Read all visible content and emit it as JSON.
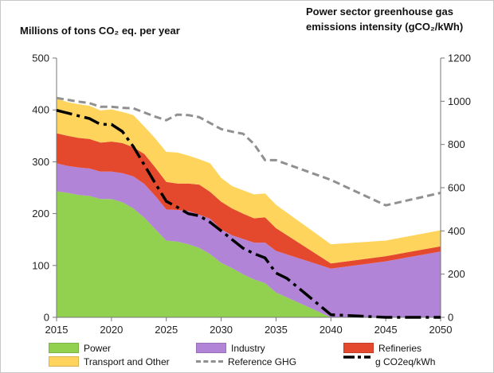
{
  "chart_data": {
    "type": "area",
    "ylabel_left": "Millions of tons CO₂ eq. per year",
    "ylabel_right": "Power sector greenhouse gas emissions intensity (gCO₂/kWh)",
    "x": [
      2015,
      2016,
      2017,
      2018,
      2019,
      2020,
      2021,
      2022,
      2023,
      2024,
      2025,
      2026,
      2027,
      2028,
      2029,
      2030,
      2031,
      2032,
      2033,
      2034,
      2035,
      2040,
      2045,
      2050
    ],
    "xticks": [
      2015,
      2020,
      2025,
      2030,
      2035,
      2040,
      2045,
      2050
    ],
    "xlim": [
      2015,
      2050
    ],
    "ylim_left": [
      0,
      500
    ],
    "yticks_left": [
      0,
      100,
      200,
      300,
      400,
      500
    ],
    "ylim_right": [
      0,
      1200
    ],
    "yticks_right": [
      0,
      200,
      400,
      600,
      800,
      1000,
      1200
    ],
    "stack_order": [
      "power",
      "industry",
      "refineries",
      "transport"
    ],
    "stacked_series": [
      {
        "id": "power",
        "name": "Power",
        "color": "#92d050",
        "values": [
          243,
          240,
          236,
          234,
          228,
          228,
          222,
          210,
          192,
          170,
          148,
          146,
          141,
          134,
          122,
          105,
          95,
          83,
          73,
          66,
          48,
          0,
          0,
          0
        ]
      },
      {
        "id": "industry",
        "name": "Industry",
        "color": "#b284d8",
        "values": [
          54,
          52,
          53,
          53,
          53,
          53,
          56,
          62,
          65,
          64,
          60,
          61,
          64,
          64,
          68,
          65,
          63,
          68,
          71,
          78,
          80,
          94,
          108,
          127
        ]
      },
      {
        "id": "refineries",
        "name": "Refineries",
        "color": "#e5492d",
        "values": [
          58,
          58,
          57,
          57,
          56,
          58,
          58,
          56,
          58,
          55,
          53,
          51,
          53,
          58,
          52,
          53,
          52,
          49,
          47,
          49,
          44,
          10,
          10,
          10
        ]
      },
      {
        "id": "transport",
        "name": "Transport and Other",
        "color": "#ffd45c",
        "values": [
          67,
          65,
          65,
          64,
          62,
          62,
          60,
          62,
          53,
          56,
          58,
          60,
          54,
          49,
          55,
          46,
          43,
          45,
          46,
          46,
          45,
          37,
          30,
          31
        ]
      }
    ],
    "line_series": [
      {
        "id": "refghg",
        "name": "Reference GHG",
        "axis": "left",
        "style": "dashed",
        "color": "#909090",
        "x": [
          2015,
          2017,
          2018,
          2019,
          2020,
          2021,
          2022,
          2024,
          2025,
          2026,
          2027,
          2028,
          2030,
          2031,
          2032,
          2033,
          2034,
          2035,
          2040,
          2045,
          2050
        ],
        "values": [
          423,
          416,
          413,
          406,
          406,
          404,
          403,
          387,
          380,
          391,
          390,
          386,
          363,
          358,
          354,
          334,
          303,
          303,
          265,
          216,
          240
        ]
      },
      {
        "id": "gco2",
        "name": "g CO2eq/kWh",
        "axis": "right",
        "style": "dashdot",
        "color": "#000000",
        "x": [
          2015,
          2018,
          2019,
          2020,
          2021,
          2022,
          2023,
          2024,
          2025,
          2026,
          2027,
          2028,
          2029,
          2030,
          2031,
          2032,
          2033,
          2034,
          2035,
          2036,
          2040,
          2045,
          2050
        ],
        "values": [
          958,
          920,
          893,
          893,
          860,
          790,
          705,
          620,
          537,
          510,
          480,
          470,
          440,
          400,
          360,
          320,
          295,
          275,
          205,
          180,
          12,
          0,
          0
        ]
      }
    ],
    "legend": {
      "placement": "bottom",
      "rows": [
        [
          {
            "id": "power",
            "label": "Power",
            "kind": "fill",
            "color": "#92d050"
          },
          {
            "id": "industry",
            "label": "Industry",
            "kind": "fill",
            "color": "#b284d8"
          },
          {
            "id": "refineries",
            "label": "Refineries",
            "kind": "fill",
            "color": "#e5492d"
          }
        ],
        [
          {
            "id": "transport",
            "label": "Transport and Other",
            "kind": "fill",
            "color": "#ffd45c"
          },
          {
            "id": "refghg",
            "label": "Reference GHG",
            "kind": "dashed",
            "color": "#909090"
          },
          {
            "id": "gco2",
            "label": "g CO2eq/kWh",
            "kind": "dashdot",
            "color": "#000000"
          }
        ]
      ]
    },
    "grid": false
  }
}
